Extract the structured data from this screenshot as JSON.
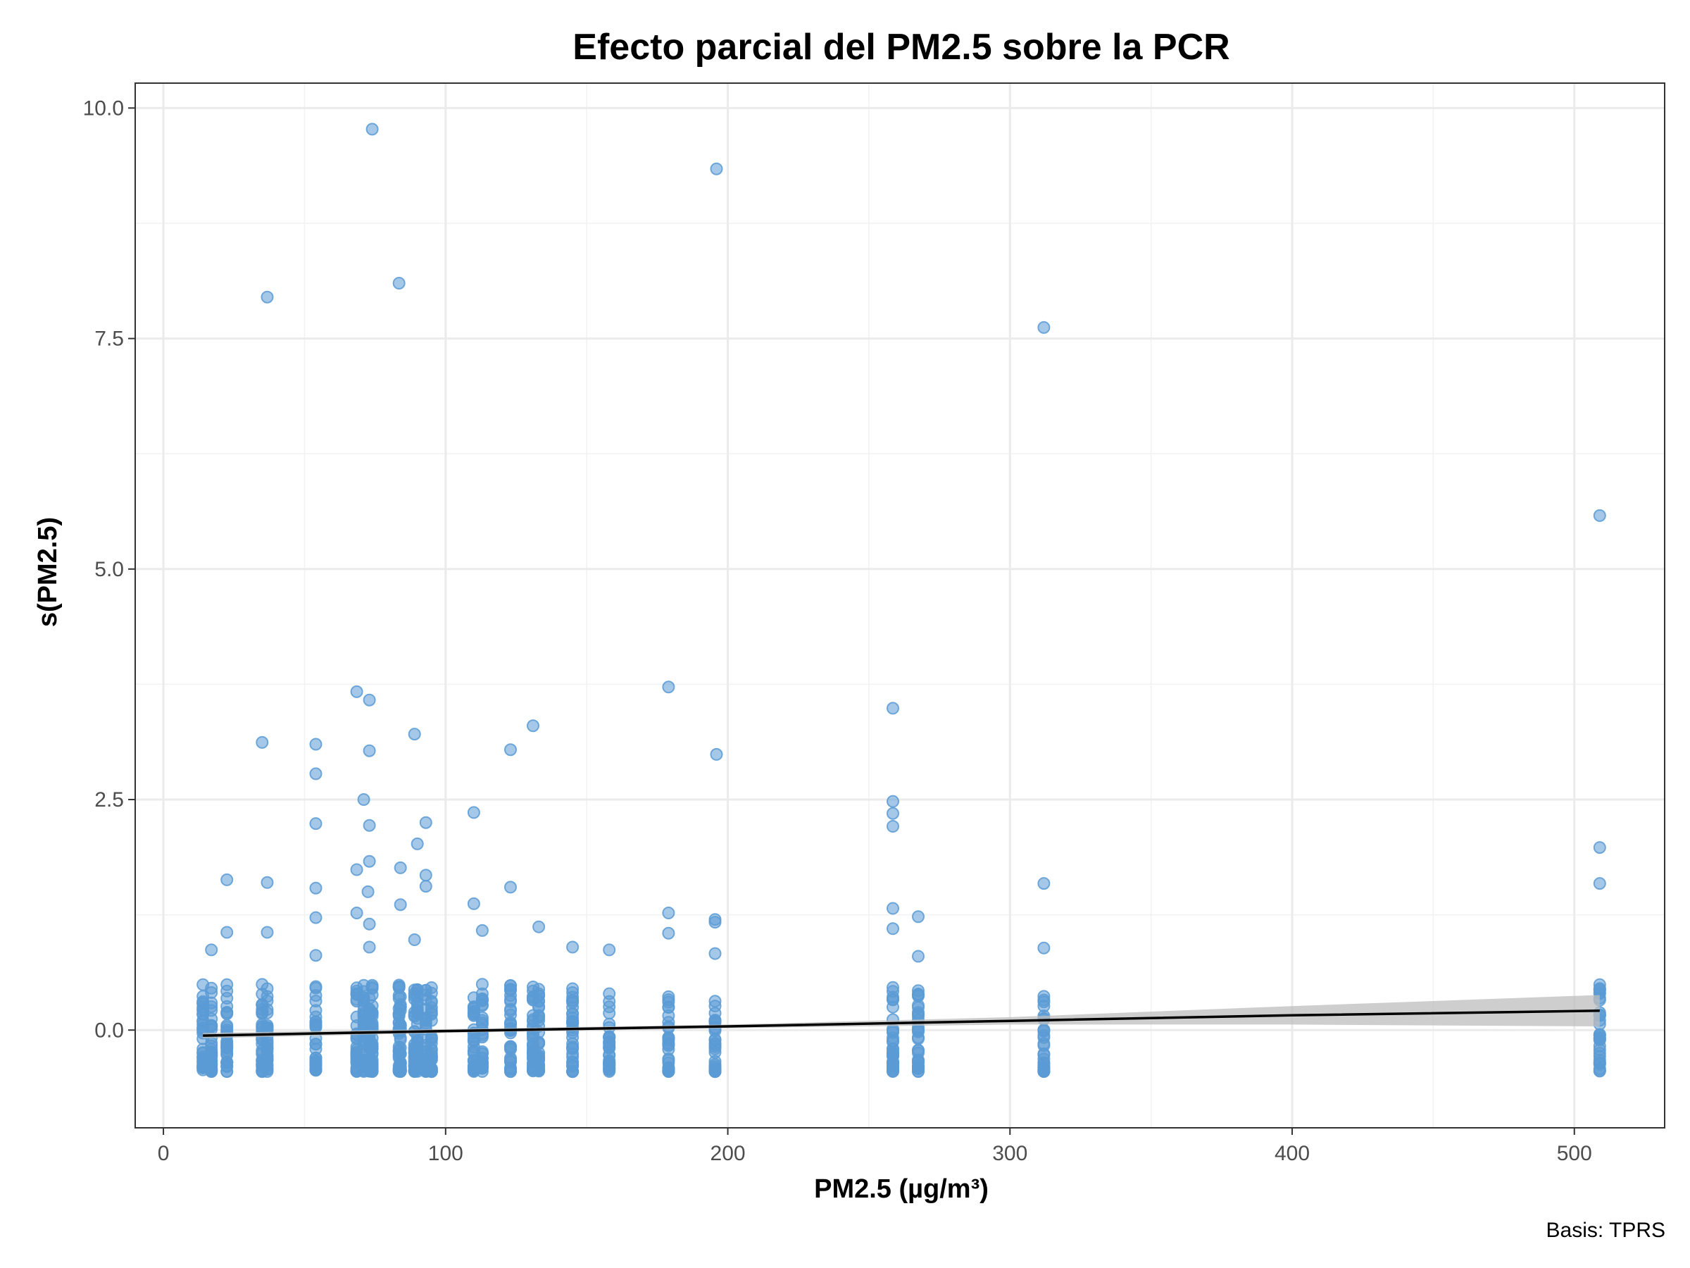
{
  "chart_data": {
    "type": "scatter",
    "title": "Efecto parcial del PM2.5 sobre la PCR",
    "xlabel": "PM2.5 (µg/m³)",
    "ylabel": "s(PM2.5)",
    "caption": "Basis: TPRS",
    "xlim": [
      -10,
      532
    ],
    "ylim": [
      -1.06,
      10.27
    ],
    "x_ticks": [
      0,
      100,
      200,
      300,
      400,
      500
    ],
    "x_tick_labels": [
      "0",
      "100",
      "200",
      "300",
      "400",
      "500"
    ],
    "y_ticks": [
      0,
      2.5,
      5,
      7.5,
      10
    ],
    "y_tick_labels": [
      "0.0",
      "2.5",
      "5.0",
      "7.5",
      "10.0"
    ],
    "grid": true,
    "colors": {
      "points": "#5b9bd5",
      "line": "#000000",
      "band": "#bdbdbd"
    },
    "smooth": {
      "x": [
        14,
        100,
        200,
        300,
        400,
        509
      ],
      "y": [
        -0.06,
        -0.01,
        0.04,
        0.1,
        0.16,
        0.21
      ],
      "lower": [
        -0.09,
        -0.03,
        0.02,
        0.06,
        0.06,
        0.04
      ],
      "upper": [
        -0.03,
        0.01,
        0.06,
        0.14,
        0.26,
        0.38
      ]
    },
    "points": {
      "x": [
        36.8,
        74,
        83.5,
        196,
        312,
        509,
        68.5,
        73,
        179,
        258.5,
        35,
        54,
        54,
        73,
        89,
        123,
        131,
        196,
        258.5,
        258.5,
        258.5,
        110,
        71,
        73,
        54,
        93,
        90,
        73,
        22.5,
        36.8,
        54,
        93,
        68.5,
        84,
        93,
        72.5,
        179,
        509,
        312,
        84,
        54,
        68.5,
        73,
        195.5,
        195.5,
        110,
        123,
        258.5,
        267.5,
        312,
        509,
        22.5,
        36.8,
        17,
        54,
        73,
        89,
        113,
        133,
        145,
        158,
        179,
        195.5,
        258.5,
        267.5
      ],
      "y": [
        7.95,
        9.77,
        8.1,
        9.34,
        7.62,
        5.58,
        3.67,
        3.58,
        3.72,
        3.49,
        3.12,
        3.1,
        2.78,
        3.03,
        3.21,
        3.04,
        3.3,
        2.99,
        2.48,
        2.35,
        2.21,
        2.36,
        2.5,
        2.22,
        2.24,
        2.25,
        2.02,
        1.83,
        1.63,
        1.6,
        1.54,
        1.68,
        1.74,
        1.76,
        1.56,
        1.5,
        1.27,
        1.98,
        1.59,
        1.36,
        1.22,
        1.27,
        1.15,
        1.2,
        1.17,
        1.37,
        1.55,
        1.32,
        1.23,
        0.89,
        1.59,
        1.06,
        1.06,
        0.87,
        0.81,
        0.9,
        0.98,
        1.08,
        1.12,
        0.9,
        0.87,
        1.05,
        0.83,
        1.1,
        0.8
      ],
      "cluster_x": [
        14,
        17,
        22.5,
        35,
        36.8,
        54,
        68.5,
        71,
        73,
        74,
        83.5,
        84,
        89,
        90,
        93,
        95,
        110,
        113,
        123,
        131,
        133,
        145,
        158,
        179,
        195.5,
        258.5,
        267.5,
        312,
        509
      ],
      "cluster_ymin": -0.45,
      "cluster_ymax": 0.5
    }
  }
}
